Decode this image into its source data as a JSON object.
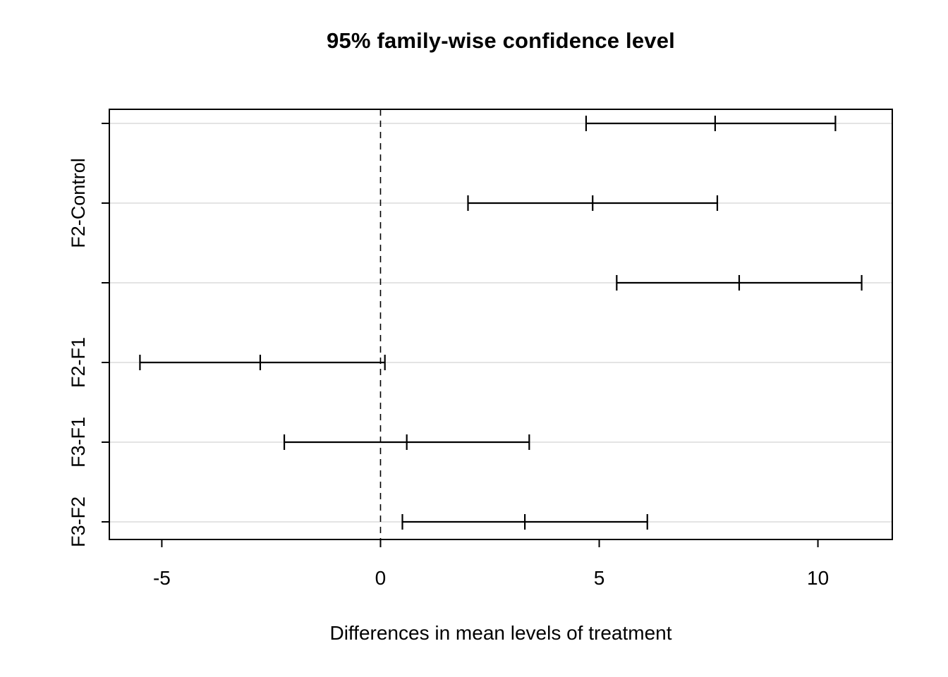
{
  "chart_data": {
    "type": "scatter",
    "subtype": "tukey-hsd-horizontal-confidence-intervals",
    "title": "95% family-wise confidence level",
    "xlabel": "Differences in mean levels of treatment",
    "ylabel": "",
    "xlim": [
      -6.2,
      11.7
    ],
    "x_ticks": [
      -5,
      0,
      5,
      10
    ],
    "grid": true,
    "legend": "none",
    "zero_reference_line": {
      "x": 0,
      "style": "dashed"
    },
    "comparisons": [
      {
        "label": "",
        "lower": 4.7,
        "center": 7.65,
        "upper": 10.4
      },
      {
        "label": "F2-Control",
        "lower": 2.0,
        "center": 4.85,
        "upper": 7.7
      },
      {
        "label": "",
        "lower": 5.4,
        "center": 8.2,
        "upper": 11.0
      },
      {
        "label": "F2-F1",
        "lower": -5.5,
        "center": -2.75,
        "upper": 0.1
      },
      {
        "label": "F3-F1",
        "lower": -2.2,
        "center": 0.6,
        "upper": 3.4
      },
      {
        "label": "F3-F2",
        "lower": 0.5,
        "center": 3.3,
        "upper": 6.1
      }
    ],
    "colors": {
      "interval": "#000000",
      "grid": "#dcdcdc",
      "axis": "#000000",
      "background": "#ffffff"
    }
  }
}
